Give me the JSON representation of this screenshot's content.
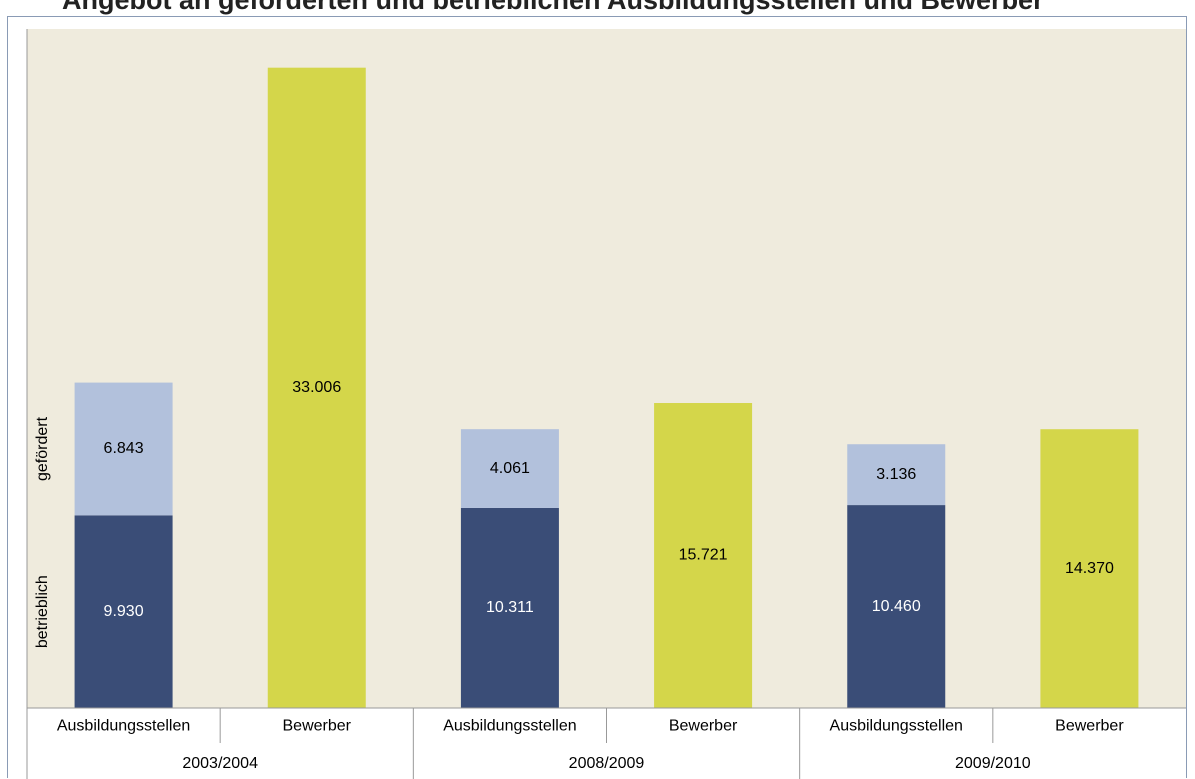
{
  "title_fragment": "Angebot an geförderten und betrieblichen Ausbildungsstellen und Bewerber",
  "colors": {
    "plot_bg": "#efebdd",
    "betrieblich": "#3a4d77",
    "gefoerdert": "#b2c1dc",
    "bewerber": "#d4d64a",
    "axis": "#999999",
    "frame": "#8a9bb5"
  },
  "chart_data": {
    "type": "bar",
    "stacked": true,
    "title": "",
    "xlabel": "",
    "ylabel": "",
    "ylim": [
      0,
      35000
    ],
    "grid": false,
    "groups": [
      {
        "label": "2003/2004",
        "bars": [
          {
            "category": "Ausbildungsstellen",
            "segments": [
              {
                "name": "betrieblich",
                "value": 9930,
                "label": "9.930"
              },
              {
                "name": "gefördert",
                "value": 6843,
                "label": "6.843"
              }
            ]
          },
          {
            "category": "Bewerber",
            "segments": [
              {
                "name": "Bewerber",
                "value": 33006,
                "label": "33.006"
              }
            ]
          }
        ]
      },
      {
        "label": "2008/2009",
        "bars": [
          {
            "category": "Ausbildungsstellen",
            "segments": [
              {
                "name": "betrieblich",
                "value": 10311,
                "label": "10.311"
              },
              {
                "name": "gefördert",
                "value": 4061,
                "label": "4.061"
              }
            ]
          },
          {
            "category": "Bewerber",
            "segments": [
              {
                "name": "Bewerber",
                "value": 15721,
                "label": "15.721"
              }
            ]
          }
        ]
      },
      {
        "label": "2009/2010",
        "bars": [
          {
            "category": "Ausbildungsstellen",
            "segments": [
              {
                "name": "betrieblich",
                "value": 10460,
                "label": "10.460"
              },
              {
                "name": "gefördert",
                "value": 3136,
                "label": "3.136"
              }
            ]
          },
          {
            "category": "Bewerber",
            "segments": [
              {
                "name": "Bewerber",
                "value": 14370,
                "label": "14.370"
              }
            ]
          }
        ]
      }
    ],
    "segment_annotations": [
      "betrieblich",
      "gefördert"
    ]
  }
}
